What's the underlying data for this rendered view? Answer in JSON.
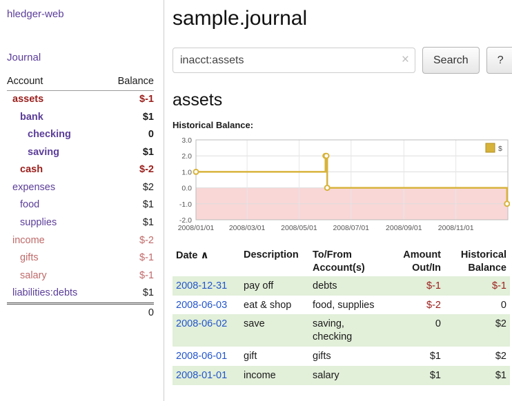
{
  "colors": {
    "brand_purple": "#5b3d99",
    "negative": "#9a201d",
    "negative_light": "#c06a6a",
    "link_blue": "#2255cc",
    "row_green": "#e2efd9",
    "chart_line": "#d8b33c",
    "chart_negative_bg": "#f9d7d7"
  },
  "sidebar": {
    "app_title": "hledger-web",
    "journal_label": "Journal",
    "accounts": {
      "header": {
        "account": "Account",
        "balance": "Balance"
      },
      "rows": [
        {
          "name": "assets",
          "indent": 0,
          "balance": "$-1",
          "bold": true,
          "tone": "dark"
        },
        {
          "name": "bank",
          "indent": 1,
          "balance": "$1",
          "bold": true,
          "tone": null
        },
        {
          "name": "checking",
          "indent": 2,
          "balance": "0",
          "bold": true,
          "tone": null
        },
        {
          "name": "saving",
          "indent": 2,
          "balance": "$1",
          "bold": true,
          "tone": null
        },
        {
          "name": "cash",
          "indent": 1,
          "balance": "$-2",
          "bold": true,
          "tone": "dark"
        },
        {
          "name": "expenses",
          "indent": 0,
          "balance": "$2",
          "bold": false,
          "tone": null
        },
        {
          "name": "food",
          "indent": 1,
          "balance": "$1",
          "bold": false,
          "tone": null
        },
        {
          "name": "supplies",
          "indent": 1,
          "balance": "$1",
          "bold": false,
          "tone": null
        },
        {
          "name": "income",
          "indent": 0,
          "balance": "$-2",
          "bold": false,
          "tone": "light"
        },
        {
          "name": "gifts",
          "indent": 1,
          "balance": "$-1",
          "bold": false,
          "tone": "light"
        },
        {
          "name": "salary",
          "indent": 1,
          "balance": "$-1",
          "bold": false,
          "tone": "light"
        },
        {
          "name": "liabilities:debts",
          "indent": 0,
          "balance": "$1",
          "bold": false,
          "tone": null
        }
      ],
      "total": "0"
    }
  },
  "main": {
    "title": "sample.journal",
    "search": {
      "value": "inacct:assets",
      "clear_icon": "×",
      "button_label": "Search",
      "help_label": "?"
    },
    "account_heading": "assets",
    "chart_label": "Historical Balance:"
  },
  "chart_data": {
    "type": "line",
    "step": true,
    "title": "Historical Balance",
    "x_ticks": [
      "2008/01/01",
      "2008/03/01",
      "2008/05/01",
      "2008/07/01",
      "2008/09/01",
      "2008/11/01"
    ],
    "y_ticks": [
      3.0,
      2.0,
      1.0,
      0.0,
      -1.0,
      -2.0
    ],
    "xlim": [
      "2008-01-01",
      "2009-01-01"
    ],
    "ylim": [
      -2,
      3
    ],
    "grid": true,
    "legend_position": "top-right",
    "series": [
      {
        "name": "$",
        "points": [
          [
            "2008-01-01",
            1
          ],
          [
            "2008-06-01",
            2
          ],
          [
            "2008-06-02",
            2
          ],
          [
            "2008-06-03",
            0
          ],
          [
            "2008-12-31",
            -1
          ]
        ]
      }
    ]
  },
  "register": {
    "headers": {
      "date": "Date",
      "sort_indicator": "∧",
      "description": "Description",
      "accounts": "To/From Account(s)",
      "amount": "Amount Out/In",
      "balance": "Historical Balance"
    },
    "rows": [
      {
        "date": "2008-12-31",
        "description": "pay off",
        "accounts": "debts",
        "amount": "$-1",
        "amount_negative": true,
        "balance": "$-1",
        "balance_negative": true
      },
      {
        "date": "2008-06-03",
        "description": "eat & shop",
        "accounts": "food, supplies",
        "amount": "$-2",
        "amount_negative": true,
        "balance": "0",
        "balance_negative": false
      },
      {
        "date": "2008-06-02",
        "description": "save",
        "accounts": "saving,\nchecking",
        "amount": "0",
        "amount_negative": false,
        "balance": "$2",
        "balance_negative": false
      },
      {
        "date": "2008-06-01",
        "description": "gift",
        "accounts": "gifts",
        "amount": "$1",
        "amount_negative": false,
        "balance": "$2",
        "balance_negative": false
      },
      {
        "date": "2008-01-01",
        "description": "income",
        "accounts": "salary",
        "amount": "$1",
        "amount_negative": false,
        "balance": "$1",
        "balance_negative": false
      }
    ]
  }
}
